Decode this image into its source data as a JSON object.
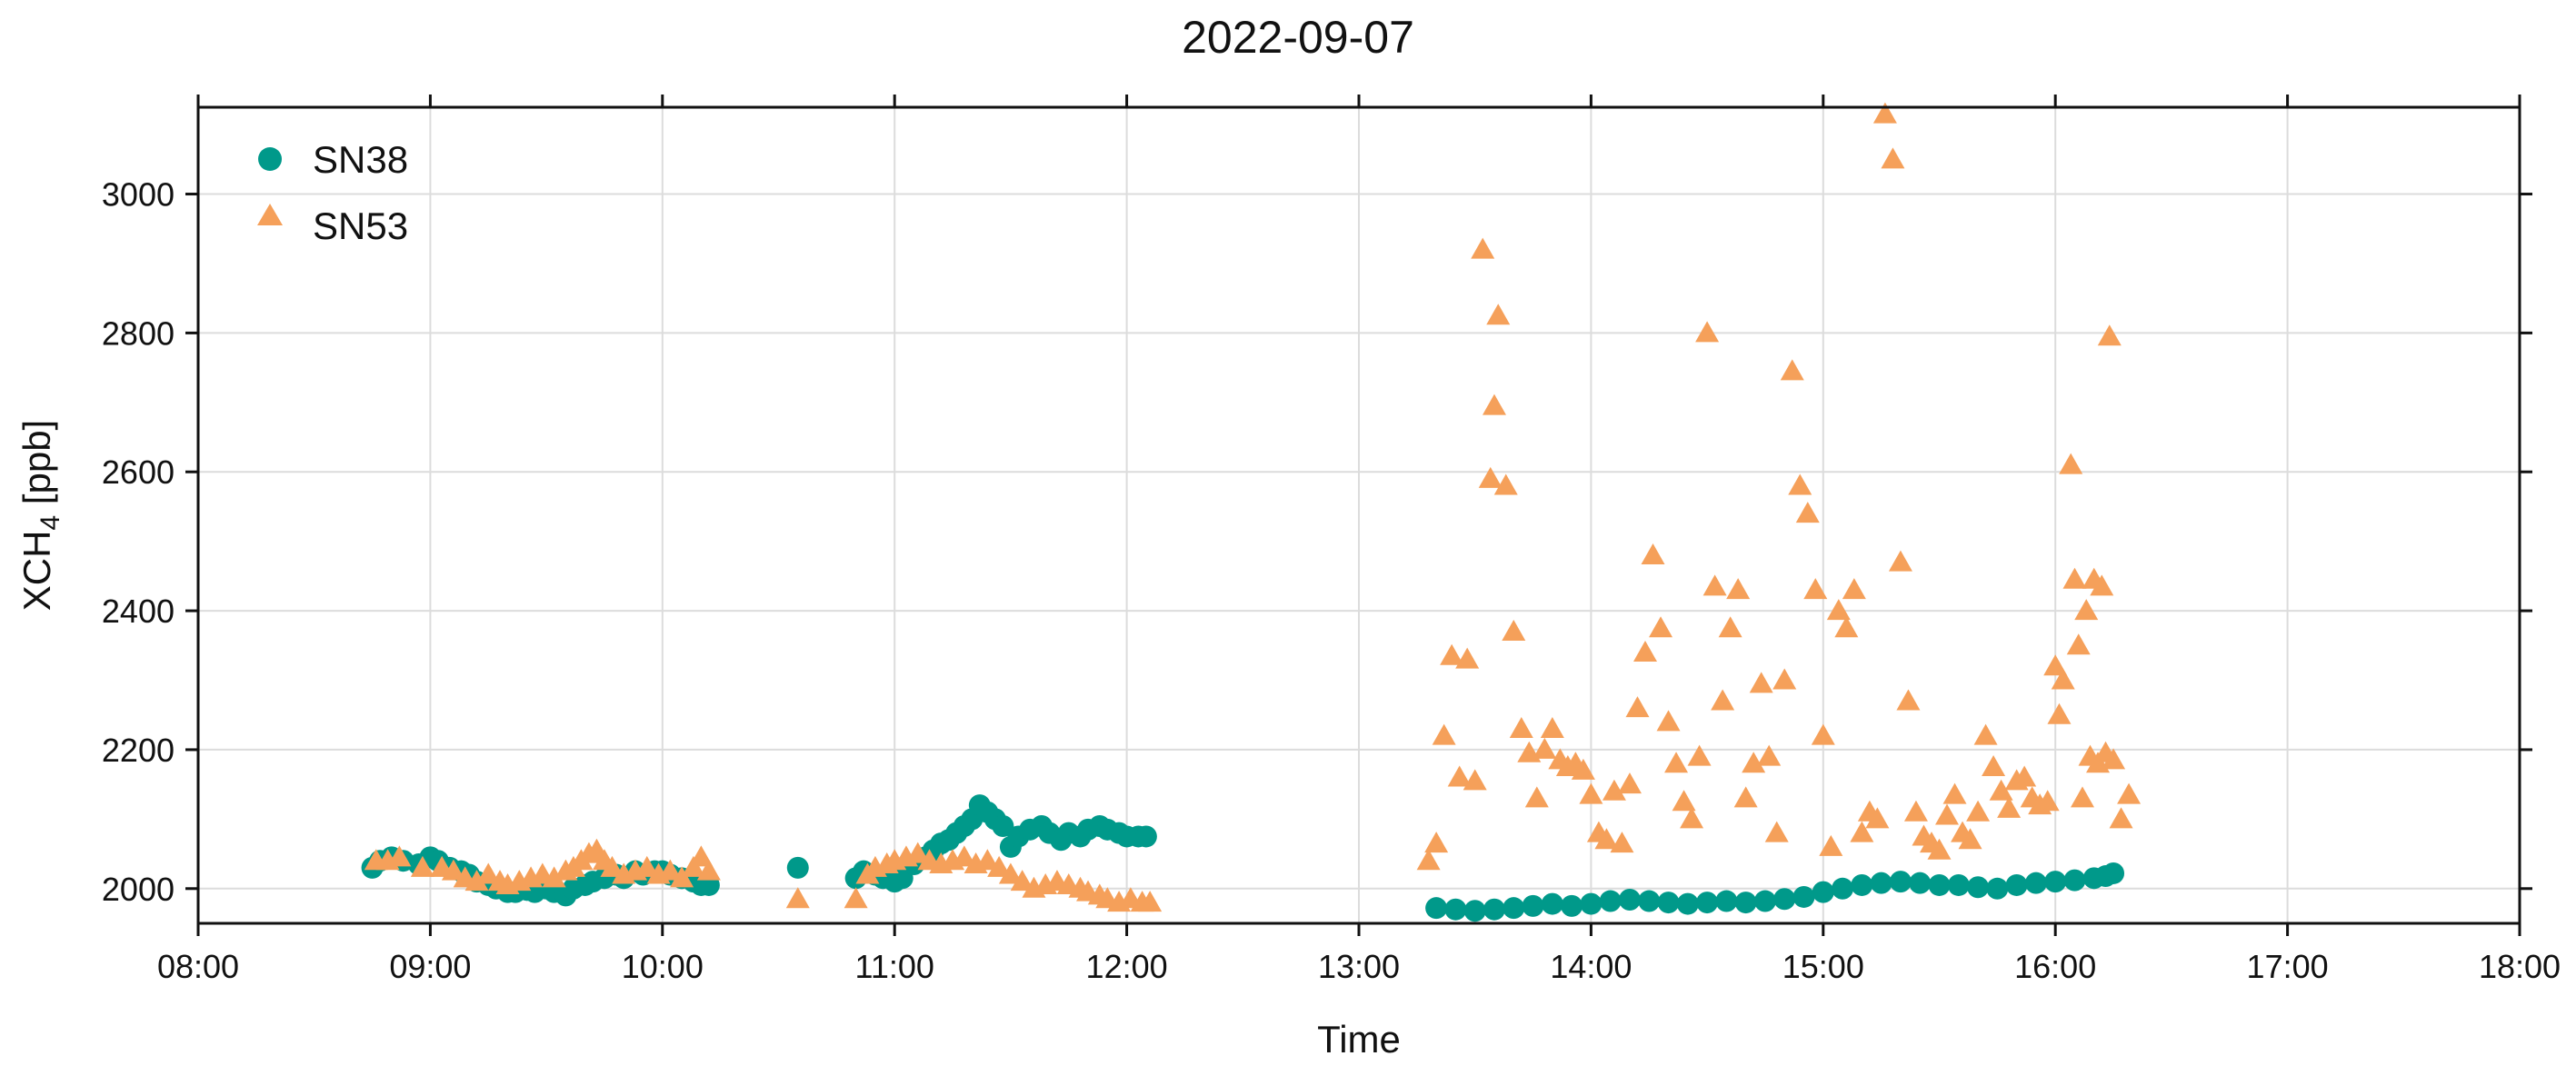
{
  "chart_data": {
    "type": "scatter",
    "title": "2022-09-07",
    "xlabel": "Time",
    "ylabel_main": "XCH",
    "ylabel_sub": "4",
    "ylabel_unit": " [ppb]",
    "xlim": [
      "08:00",
      "18:00"
    ],
    "ylim": [
      1950,
      3125
    ],
    "xticks": [
      "08:00",
      "09:00",
      "10:00",
      "11:00",
      "12:00",
      "13:00",
      "14:00",
      "15:00",
      "16:00",
      "17:00",
      "18:00"
    ],
    "yticks": [
      2000,
      2200,
      2400,
      2600,
      2800,
      3000
    ],
    "grid": true,
    "legend": "top-left",
    "series": [
      {
        "name": "SN38",
        "marker": "circle",
        "color": "#00998a",
        "points": [
          [
            "08:45",
            2030
          ],
          [
            "08:47",
            2040
          ],
          [
            "08:50",
            2045
          ],
          [
            "08:53",
            2040
          ],
          [
            "08:57",
            2035
          ],
          [
            "09:00",
            2045
          ],
          [
            "09:02",
            2040
          ],
          [
            "09:05",
            2030
          ],
          [
            "09:08",
            2025
          ],
          [
            "09:10",
            2020
          ],
          [
            "09:12",
            2010
          ],
          [
            "09:15",
            2005
          ],
          [
            "09:17",
            2000
          ],
          [
            "09:20",
            1995
          ],
          [
            "09:22",
            1995
          ],
          [
            "09:25",
            1998
          ],
          [
            "09:27",
            1995
          ],
          [
            "09:30",
            2000
          ],
          [
            "09:32",
            1995
          ],
          [
            "09:35",
            1990
          ],
          [
            "09:37",
            2000
          ],
          [
            "09:40",
            2005
          ],
          [
            "09:42",
            2010
          ],
          [
            "09:45",
            2015
          ],
          [
            "09:48",
            2020
          ],
          [
            "09:50",
            2015
          ],
          [
            "09:53",
            2025
          ],
          [
            "09:55",
            2020
          ],
          [
            "09:58",
            2025
          ],
          [
            "10:00",
            2025
          ],
          [
            "10:02",
            2020
          ],
          [
            "10:05",
            2015
          ],
          [
            "10:08",
            2010
          ],
          [
            "10:10",
            2005
          ],
          [
            "10:12",
            2005
          ],
          [
            "10:35",
            2030
          ],
          [
            "10:50",
            2015
          ],
          [
            "10:52",
            2025
          ],
          [
            "10:55",
            2020
          ],
          [
            "10:57",
            2015
          ],
          [
            "11:00",
            2010
          ],
          [
            "11:02",
            2015
          ],
          [
            "11:05",
            2035
          ],
          [
            "11:08",
            2045
          ],
          [
            "11:10",
            2055
          ],
          [
            "11:12",
            2065
          ],
          [
            "11:14",
            2070
          ],
          [
            "11:16",
            2080
          ],
          [
            "11:18",
            2090
          ],
          [
            "11:20",
            2100
          ],
          [
            "11:22",
            2120
          ],
          [
            "11:24",
            2110
          ],
          [
            "11:26",
            2100
          ],
          [
            "11:28",
            2090
          ],
          [
            "11:30",
            2060
          ],
          [
            "11:32",
            2075
          ],
          [
            "11:35",
            2085
          ],
          [
            "11:38",
            2090
          ],
          [
            "11:40",
            2080
          ],
          [
            "11:43",
            2070
          ],
          [
            "11:45",
            2080
          ],
          [
            "11:48",
            2075
          ],
          [
            "11:50",
            2085
          ],
          [
            "11:53",
            2090
          ],
          [
            "11:55",
            2085
          ],
          [
            "11:58",
            2080
          ],
          [
            "12:00",
            2075
          ],
          [
            "12:03",
            2075
          ],
          [
            "12:05",
            2075
          ],
          [
            "13:20",
            1972
          ],
          [
            "13:25",
            1970
          ],
          [
            "13:30",
            1968
          ],
          [
            "13:35",
            1970
          ],
          [
            "13:40",
            1972
          ],
          [
            "13:45",
            1975
          ],
          [
            "13:50",
            1978
          ],
          [
            "13:55",
            1975
          ],
          [
            "14:00",
            1978
          ],
          [
            "14:05",
            1982
          ],
          [
            "14:10",
            1984
          ],
          [
            "14:15",
            1982
          ],
          [
            "14:20",
            1980
          ],
          [
            "14:25",
            1978
          ],
          [
            "14:30",
            1980
          ],
          [
            "14:35",
            1982
          ],
          [
            "14:40",
            1980
          ],
          [
            "14:45",
            1982
          ],
          [
            "14:50",
            1985
          ],
          [
            "14:55",
            1988
          ],
          [
            "15:00",
            1995
          ],
          [
            "15:05",
            2000
          ],
          [
            "15:10",
            2005
          ],
          [
            "15:15",
            2008
          ],
          [
            "15:20",
            2010
          ],
          [
            "15:25",
            2008
          ],
          [
            "15:30",
            2005
          ],
          [
            "15:35",
            2005
          ],
          [
            "15:40",
            2002
          ],
          [
            "15:45",
            2000
          ],
          [
            "15:50",
            2005
          ],
          [
            "15:55",
            2008
          ],
          [
            "16:00",
            2010
          ],
          [
            "16:05",
            2012
          ],
          [
            "16:10",
            2015
          ],
          [
            "16:13",
            2018
          ],
          [
            "16:15",
            2022
          ]
        ]
      },
      {
        "name": "SN53",
        "marker": "triangle",
        "color": "#f5a05a",
        "points": [
          [
            "08:46",
            2040
          ],
          [
            "08:49",
            2040
          ],
          [
            "08:52",
            2045
          ],
          [
            "08:58",
            2030
          ],
          [
            "09:03",
            2030
          ],
          [
            "09:06",
            2025
          ],
          [
            "09:09",
            2015
          ],
          [
            "09:12",
            2010
          ],
          [
            "09:15",
            2020
          ],
          [
            "09:18",
            2010
          ],
          [
            "09:20",
            2005
          ],
          [
            "09:23",
            2010
          ],
          [
            "09:26",
            2015
          ],
          [
            "09:29",
            2020
          ],
          [
            "09:32",
            2015
          ],
          [
            "09:35",
            2025
          ],
          [
            "09:37",
            2030
          ],
          [
            "09:39",
            2040
          ],
          [
            "09:41",
            2050
          ],
          [
            "09:43",
            2055
          ],
          [
            "09:45",
            2040
          ],
          [
            "09:47",
            2030
          ],
          [
            "09:50",
            2020
          ],
          [
            "09:53",
            2025
          ],
          [
            "09:56",
            2030
          ],
          [
            "09:59",
            2020
          ],
          [
            "10:02",
            2025
          ],
          [
            "10:05",
            2015
          ],
          [
            "10:08",
            2030
          ],
          [
            "10:10",
            2045
          ],
          [
            "10:12",
            2025
          ],
          [
            "10:35",
            1985
          ],
          [
            "10:50",
            1985
          ],
          [
            "10:53",
            2020
          ],
          [
            "10:55",
            2030
          ],
          [
            "10:58",
            2035
          ],
          [
            "11:00",
            2040
          ],
          [
            "11:03",
            2045
          ],
          [
            "11:06",
            2050
          ],
          [
            "11:09",
            2040
          ],
          [
            "11:12",
            2035
          ],
          [
            "11:15",
            2040
          ],
          [
            "11:18",
            2045
          ],
          [
            "11:21",
            2035
          ],
          [
            "11:24",
            2040
          ],
          [
            "11:27",
            2030
          ],
          [
            "11:30",
            2020
          ],
          [
            "11:33",
            2010
          ],
          [
            "11:36",
            2000
          ],
          [
            "11:39",
            2005
          ],
          [
            "11:42",
            2010
          ],
          [
            "11:45",
            2005
          ],
          [
            "11:48",
            2000
          ],
          [
            "11:50",
            1995
          ],
          [
            "11:53",
            1990
          ],
          [
            "11:55",
            1985
          ],
          [
            "11:58",
            1980
          ],
          [
            "12:01",
            1985
          ],
          [
            "12:04",
            1980
          ],
          [
            "12:06",
            1980
          ],
          [
            "13:18",
            2040
          ],
          [
            "13:20",
            2065
          ],
          [
            "13:22",
            2220
          ],
          [
            "13:24",
            2335
          ],
          [
            "13:26",
            2160
          ],
          [
            "13:28",
            2330
          ],
          [
            "13:30",
            2155
          ],
          [
            "13:32",
            2920
          ],
          [
            "13:34",
            2590
          ],
          [
            "13:35",
            2695
          ],
          [
            "13:36",
            2825
          ],
          [
            "13:38",
            2580
          ],
          [
            "13:40",
            2370
          ],
          [
            "13:42",
            2230
          ],
          [
            "13:44",
            2195
          ],
          [
            "13:46",
            2130
          ],
          [
            "13:48",
            2200
          ],
          [
            "13:50",
            2230
          ],
          [
            "13:52",
            2185
          ],
          [
            "13:54",
            2175
          ],
          [
            "13:56",
            2180
          ],
          [
            "13:58",
            2170
          ],
          [
            "14:00",
            2135
          ],
          [
            "14:02",
            2080
          ],
          [
            "14:04",
            2070
          ],
          [
            "14:06",
            2140
          ],
          [
            "14:08",
            2065
          ],
          [
            "14:10",
            2150
          ],
          [
            "14:12",
            2260
          ],
          [
            "14:14",
            2340
          ],
          [
            "14:16",
            2480
          ],
          [
            "14:18",
            2375
          ],
          [
            "14:20",
            2240
          ],
          [
            "14:22",
            2180
          ],
          [
            "14:24",
            2125
          ],
          [
            "14:26",
            2100
          ],
          [
            "14:28",
            2190
          ],
          [
            "14:30",
            2800
          ],
          [
            "14:32",
            2435
          ],
          [
            "14:34",
            2270
          ],
          [
            "14:36",
            2375
          ],
          [
            "14:38",
            2430
          ],
          [
            "14:40",
            2130
          ],
          [
            "14:42",
            2180
          ],
          [
            "14:44",
            2295
          ],
          [
            "14:46",
            2190
          ],
          [
            "14:48",
            2080
          ],
          [
            "14:50",
            2300
          ],
          [
            "14:52",
            2745
          ],
          [
            "14:54",
            2580
          ],
          [
            "14:56",
            2540
          ],
          [
            "14:58",
            2430
          ],
          [
            "15:00",
            2220
          ],
          [
            "15:02",
            2060
          ],
          [
            "15:04",
            2400
          ],
          [
            "15:06",
            2375
          ],
          [
            "15:08",
            2430
          ],
          [
            "15:10",
            2080
          ],
          [
            "15:12",
            2110
          ],
          [
            "15:14",
            2100
          ],
          [
            "15:16",
            3115
          ],
          [
            "15:18",
            3050
          ],
          [
            "15:20",
            2470
          ],
          [
            "15:22",
            2270
          ],
          [
            "15:24",
            2110
          ],
          [
            "15:26",
            2075
          ],
          [
            "15:28",
            2065
          ],
          [
            "15:30",
            2055
          ],
          [
            "15:32",
            2105
          ],
          [
            "15:34",
            2135
          ],
          [
            "15:36",
            2080
          ],
          [
            "15:38",
            2070
          ],
          [
            "15:40",
            2110
          ],
          [
            "15:42",
            2220
          ],
          [
            "15:44",
            2175
          ],
          [
            "15:46",
            2140
          ],
          [
            "15:48",
            2115
          ],
          [
            "15:50",
            2155
          ],
          [
            "15:52",
            2160
          ],
          [
            "15:54",
            2130
          ],
          [
            "15:56",
            2120
          ],
          [
            "15:58",
            2125
          ],
          [
            "16:00",
            2320
          ],
          [
            "16:01",
            2250
          ],
          [
            "16:02",
            2300
          ],
          [
            "16:04",
            2610
          ],
          [
            "16:05",
            2445
          ],
          [
            "16:06",
            2350
          ],
          [
            "16:07",
            2130
          ],
          [
            "16:08",
            2400
          ],
          [
            "16:09",
            2190
          ],
          [
            "16:10",
            2445
          ],
          [
            "16:11",
            2180
          ],
          [
            "16:12",
            2435
          ],
          [
            "16:13",
            2195
          ],
          [
            "16:14",
            2795
          ],
          [
            "16:15",
            2185
          ],
          [
            "16:17",
            2100
          ],
          [
            "16:19",
            2135
          ]
        ]
      }
    ]
  }
}
